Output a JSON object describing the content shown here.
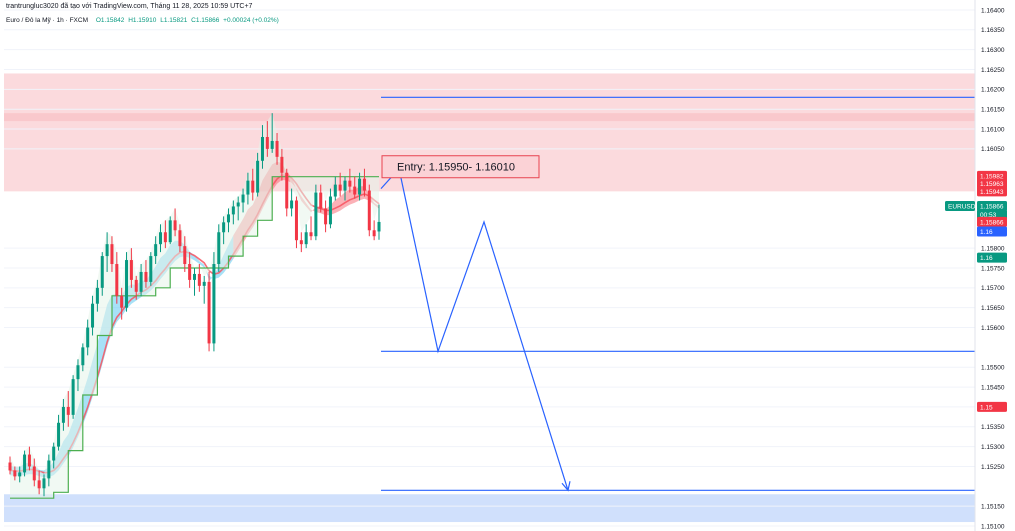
{
  "header": {
    "attribution": "trantrungluc3020 đã tạo với TradingView.com, Tháng 11 28, 2025 10:59 UTC+7",
    "symbol_line": "Euro / Đô la Mỹ · 1h · FXCM",
    "ohlc": {
      "o": "O1.15842",
      "h": "H1.15910",
      "l": "L1.15821",
      "c": "C1.15866",
      "chg": "+0.00024 (+0.02%)"
    }
  },
  "colors": {
    "up": "#089981",
    "down": "#f23645",
    "blue": "#2962ff",
    "supply_zone": "#f8bcc1",
    "demand_zone": "#bcd3fb",
    "ribbon_red": "#f7525f",
    "ribbon_blue": "#5ec8f0",
    "trail_green": "#4caf50"
  },
  "chart_data": {
    "type": "candlestick",
    "symbol": "EURUSD",
    "timeframe": "1h",
    "y_ticks": [
      "1.16400",
      "1.16350",
      "1.16300",
      "1.16250",
      "1.16200",
      "1.16150",
      "1.16100",
      "1.16050",
      "1.15800",
      "1.15750",
      "1.15700",
      "1.15650",
      "1.15600",
      "1.15500",
      "1.15450",
      "1.15400",
      "1.15350",
      "1.15300",
      "1.15250",
      "1.15150",
      "1.15100"
    ],
    "ylim": [
      1.15095,
      1.16415
    ],
    "supply_zone": [
      1.15943,
      1.1624
    ],
    "supply_zone_inner": [
      1.1612,
      1.1614
    ],
    "demand_zone": [
      1.1511,
      1.1518
    ],
    "levels": [
      {
        "price": 1.1618,
        "label": "1.16180",
        "color": "#2962ff"
      },
      {
        "price": 1.1554,
        "label": "1.15540",
        "color": "#2962ff"
      },
      {
        "price": 1.1519,
        "label": "1.15190",
        "color": "#2962ff"
      }
    ],
    "annotation": {
      "text": "Entry: 1.15950- 1.16010",
      "price": 1.16
    },
    "projection": [
      [
        0,
        1.1595
      ],
      [
        1,
        1.16
      ],
      [
        2,
        1.1554
      ],
      [
        3,
        1.15866
      ],
      [
        4,
        1.1519
      ]
    ],
    "price_tags": [
      {
        "label": "1.15982",
        "price": 1.15982,
        "color": "#f23645"
      },
      {
        "label": "1.15963",
        "price": 1.15963,
        "color": "#f23645"
      },
      {
        "label": "1.15943",
        "price": 1.15943,
        "color": "#f23645"
      },
      {
        "label": "EURUSD",
        "price": 1.15906,
        "color": "#089981",
        "left": true
      },
      {
        "label": "1.15866",
        "price": 1.15906,
        "color": "#089981"
      },
      {
        "label": "00:53",
        "price": 1.15884,
        "color": "#089981"
      },
      {
        "label": "1.15866",
        "price": 1.15866,
        "color": "#f23645"
      },
      {
        "label": "1.16",
        "price": 1.15842,
        "color": "#2962ff"
      },
      {
        "label": "1.16",
        "price": 1.15776,
        "color": "#089981"
      },
      {
        "label": "1.15",
        "price": 1.154,
        "color": "#f23645"
      }
    ],
    "candles": [
      [
        1.1526,
        1.15275,
        1.1523,
        1.1524
      ],
      [
        1.1524,
        1.1525,
        1.15215,
        1.15225
      ],
      [
        1.15225,
        1.1525,
        1.1521,
        1.15235
      ],
      [
        1.15235,
        1.1529,
        1.15225,
        1.1528
      ],
      [
        1.1528,
        1.153,
        1.1524,
        1.1525
      ],
      [
        1.1525,
        1.1527,
        1.152,
        1.15215
      ],
      [
        1.15215,
        1.1524,
        1.1518,
        1.15195
      ],
      [
        1.15195,
        1.1523,
        1.15175,
        1.1522
      ],
      [
        1.1522,
        1.1528,
        1.152,
        1.15265
      ],
      [
        1.15265,
        1.1531,
        1.15245,
        1.153
      ],
      [
        1.153,
        1.1538,
        1.1529,
        1.1536
      ],
      [
        1.1536,
        1.1542,
        1.1534,
        1.154
      ],
      [
        1.154,
        1.1544,
        1.1535,
        1.1538
      ],
      [
        1.1538,
        1.1548,
        1.1537,
        1.1547
      ],
      [
        1.1547,
        1.1552,
        1.1544,
        1.15505
      ],
      [
        1.15505,
        1.1556,
        1.1549,
        1.1555
      ],
      [
        1.1555,
        1.1562,
        1.1553,
        1.156
      ],
      [
        1.156,
        1.1568,
        1.1558,
        1.1566
      ],
      [
        1.1566,
        1.1572,
        1.1564,
        1.157
      ],
      [
        1.157,
        1.1579,
        1.1568,
        1.1578
      ],
      [
        1.1578,
        1.1584,
        1.1574,
        1.1581
      ],
      [
        1.1581,
        1.1583,
        1.1574,
        1.1576
      ],
      [
        1.1576,
        1.1579,
        1.1566,
        1.1568
      ],
      [
        1.1568,
        1.157,
        1.1562,
        1.1565
      ],
      [
        1.1565,
        1.1579,
        1.1564,
        1.1577
      ],
      [
        1.1577,
        1.158,
        1.157,
        1.1572
      ],
      [
        1.1572,
        1.1573,
        1.1567,
        1.1569
      ],
      [
        1.1569,
        1.1576,
        1.1568,
        1.1574
      ],
      [
        1.1574,
        1.1577,
        1.157,
        1.15715
      ],
      [
        1.15715,
        1.1579,
        1.15705,
        1.1578
      ],
      [
        1.1578,
        1.1583,
        1.1576,
        1.1581
      ],
      [
        1.1581,
        1.1586,
        1.1579,
        1.1584
      ],
      [
        1.1584,
        1.1587,
        1.158,
        1.15815
      ],
      [
        1.15815,
        1.1588,
        1.1581,
        1.1587
      ],
      [
        1.1587,
        1.159,
        1.1583,
        1.15845
      ],
      [
        1.15845,
        1.1586,
        1.1579,
        1.15805
      ],
      [
        1.15805,
        1.1583,
        1.1574,
        1.1576
      ],
      [
        1.1576,
        1.1579,
        1.157,
        1.1572
      ],
      [
        1.1572,
        1.1575,
        1.1568,
        1.15735
      ],
      [
        1.15735,
        1.1576,
        1.1569,
        1.15705
      ],
      [
        1.15705,
        1.1573,
        1.1566,
        1.15715
      ],
      [
        1.15715,
        1.1574,
        1.1554,
        1.1556
      ],
      [
        1.1556,
        1.1579,
        1.1554,
        1.1576
      ],
      [
        1.1576,
        1.1586,
        1.1574,
        1.1584
      ],
      [
        1.1584,
        1.1588,
        1.1581,
        1.15865
      ],
      [
        1.15865,
        1.159,
        1.1584,
        1.15885
      ],
      [
        1.15885,
        1.1592,
        1.1586,
        1.15905
      ],
      [
        1.15905,
        1.1593,
        1.1587,
        1.15915
      ],
      [
        1.15915,
        1.1595,
        1.1589,
        1.15935
      ],
      [
        1.15935,
        1.1599,
        1.1591,
        1.1597
      ],
      [
        1.1597,
        1.16,
        1.1592,
        1.1594
      ],
      [
        1.1594,
        1.1604,
        1.1593,
        1.1602
      ],
      [
        1.1602,
        1.1611,
        1.16,
        1.1608
      ],
      [
        1.1608,
        1.1612,
        1.1603,
        1.1605
      ],
      [
        1.1605,
        1.1614,
        1.1604,
        1.1607
      ],
      [
        1.1607,
        1.1609,
        1.1601,
        1.1603
      ],
      [
        1.1603,
        1.1605,
        1.1597,
        1.1599
      ],
      [
        1.1599,
        1.16,
        1.1588,
        1.159
      ],
      [
        1.159,
        1.1595,
        1.1588,
        1.1592
      ],
      [
        1.1592,
        1.1593,
        1.158,
        1.1582
      ],
      [
        1.1582,
        1.1584,
        1.1579,
        1.1581
      ],
      [
        1.1581,
        1.1586,
        1.158,
        1.1584
      ],
      [
        1.1584,
        1.1588,
        1.1582,
        1.1583
      ],
      [
        1.1583,
        1.1596,
        1.1582,
        1.1594
      ],
      [
        1.1594,
        1.1596,
        1.1589,
        1.159
      ],
      [
        1.159,
        1.1592,
        1.1584,
        1.1586
      ],
      [
        1.1586,
        1.1595,
        1.1585,
        1.1593
      ],
      [
        1.1593,
        1.1598,
        1.1592,
        1.1596
      ],
      [
        1.1596,
        1.1599,
        1.1593,
        1.15945
      ],
      [
        1.15945,
        1.1598,
        1.1592,
        1.1597
      ],
      [
        1.1597,
        1.16,
        1.1594,
        1.15955
      ],
      [
        1.15955,
        1.1598,
        1.15925,
        1.15935
      ],
      [
        1.15935,
        1.1599,
        1.1592,
        1.15975
      ],
      [
        1.15975,
        1.16,
        1.1593,
        1.15945
      ],
      [
        1.15945,
        1.1596,
        1.1583,
        1.15845
      ],
      [
        1.15845,
        1.1587,
        1.1582,
        1.1583
      ],
      [
        1.15842,
        1.1591,
        1.15821,
        1.15866
      ]
    ]
  }
}
